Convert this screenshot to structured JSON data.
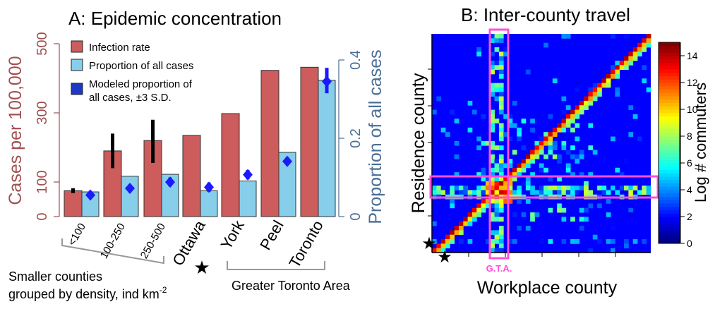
{
  "chart_data": [
    {
      "type": "bar",
      "title": "A: Epidemic concentration",
      "ylabel_left": "Cases per 100,000",
      "ylabel_right": "Proportion of all cases",
      "ylim_left": [
        0,
        500
      ],
      "yticks_left": [
        "0",
        "100",
        "300",
        "500"
      ],
      "ylim_right": [
        0,
        0.4
      ],
      "yticks_right": [
        "0",
        "0.2",
        "0.4"
      ],
      "categories": [
        "<100",
        "100-250",
        "250-500",
        "Ottawa",
        "York",
        "Peel",
        "Toronto"
      ],
      "legend": [
        "Infection rate",
        "Proportion of all cases",
        "Modeled proportion of all cases, ±3 S.D."
      ],
      "series": [
        {
          "name": "Infection rate",
          "color": "#cd5c5c",
          "values": [
            75,
            190,
            220,
            235,
            298,
            423,
            432
          ],
          "error_low": [
            68,
            140,
            155,
            null,
            null,
            null,
            null
          ],
          "error_high": [
            82,
            240,
            280,
            null,
            null,
            null,
            null
          ]
        },
        {
          "name": "Proportion of all cases",
          "color": "#87ceeb",
          "values": [
            0.063,
            0.103,
            0.108,
            0.066,
            0.091,
            0.164,
            0.348
          ]
        },
        {
          "name": "Modeled proportion of all cases, ±3 S.D.",
          "color": "#0000ff",
          "values": [
            0.055,
            0.072,
            0.088,
            0.075,
            0.107,
            0.141,
            0.345
          ],
          "low": [
            0.045,
            0.062,
            0.077,
            0.063,
            0.095,
            0.131,
            0.315
          ],
          "high": [
            0.066,
            0.082,
            0.1,
            0.087,
            0.119,
            0.152,
            0.38
          ]
        }
      ],
      "group_labels": [
        "Smaller counties",
        "grouped by density, ind km",
        "-2",
        "Greater Toronto Area"
      ],
      "marker_symbol": "★"
    },
    {
      "type": "heatmap",
      "title": "B: Inter-county travel",
      "xlabel": "Workplace county",
      "ylabel": "Residence county",
      "colorbar_label": "Log # commuters",
      "colorbar_ticks": [
        "0",
        "2",
        "4",
        "6",
        "8",
        "10",
        "12",
        "14"
      ],
      "colorbar_range": [
        0,
        15
      ],
      "gta_label": "G.T.A.",
      "highlight_color": "#ff4fd8",
      "marker_symbol": "★"
    }
  ]
}
